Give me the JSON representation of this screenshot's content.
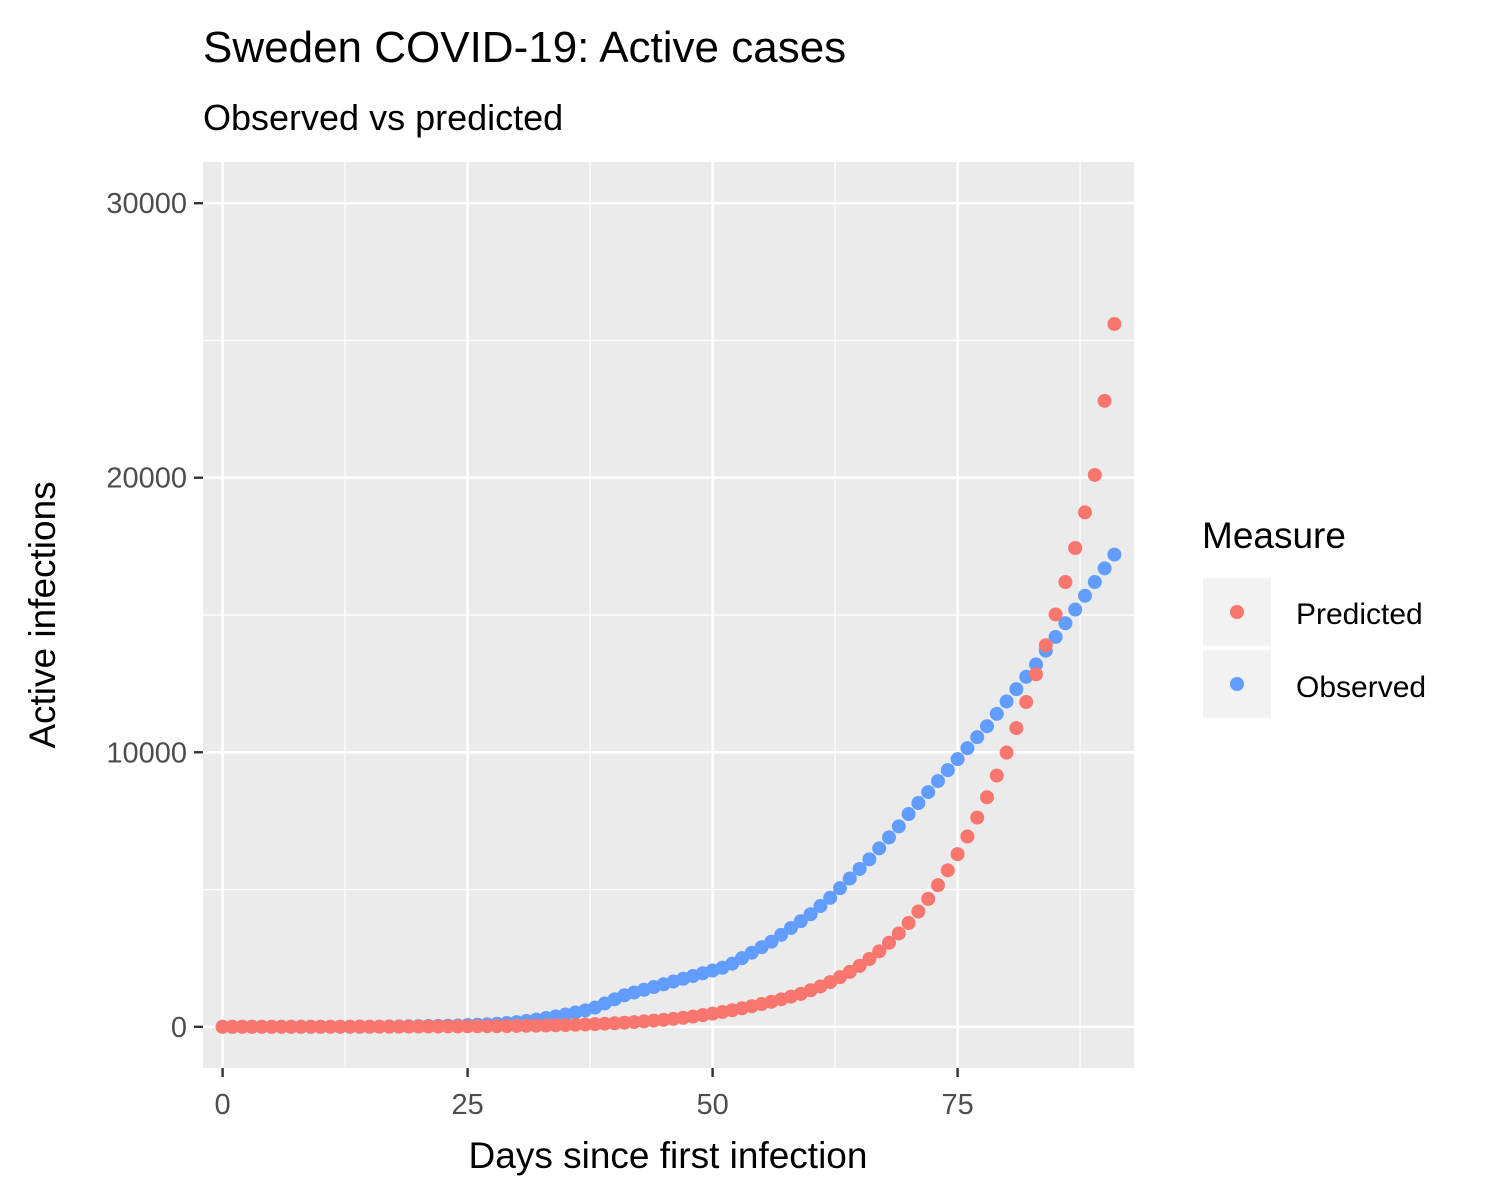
{
  "chart_data": {
    "type": "scatter",
    "title": "Sweden COVID-19: Active cases",
    "subtitle": "Observed vs predicted",
    "xlabel": "Days since first infection",
    "ylabel": "Active infections",
    "xlim": [
      -2,
      93
    ],
    "ylim": [
      -1500,
      31500
    ],
    "x_ticks": [
      0,
      25,
      50,
      75
    ],
    "x_tick_labels": [
      "0",
      "25",
      "50",
      "75"
    ],
    "y_ticks": [
      0,
      10000,
      20000,
      30000
    ],
    "y_tick_labels": [
      "0",
      "10000",
      "20000",
      "30000"
    ],
    "grid": true,
    "legend": {
      "title": "Measure",
      "placement": "right"
    },
    "x": [
      0,
      1,
      2,
      3,
      4,
      5,
      6,
      7,
      8,
      9,
      10,
      11,
      12,
      13,
      14,
      15,
      16,
      17,
      18,
      19,
      20,
      21,
      22,
      23,
      24,
      25,
      26,
      27,
      28,
      29,
      30,
      31,
      32,
      33,
      34,
      35,
      36,
      37,
      38,
      39,
      40,
      41,
      42,
      43,
      44,
      45,
      46,
      47,
      48,
      49,
      50,
      51,
      52,
      53,
      54,
      55,
      56,
      57,
      58,
      59,
      60,
      61,
      62,
      63,
      64,
      65,
      66,
      67,
      68,
      69,
      70,
      71,
      72,
      73,
      74,
      75,
      76,
      77,
      78,
      79,
      80,
      81,
      82,
      83,
      84,
      85,
      86,
      87,
      88,
      89,
      90,
      91
    ],
    "series": [
      {
        "name": "Predicted",
        "color": "#F8766D",
        "values": [
          1,
          1,
          1,
          1,
          1,
          2,
          2,
          2,
          2,
          3,
          3,
          3,
          4,
          4,
          5,
          5,
          6,
          7,
          7,
          8,
          9,
          10,
          12,
          13,
          15,
          17,
          19,
          22,
          25,
          28,
          32,
          37,
          42,
          48,
          55,
          63,
          73,
          85,
          98,
          113,
          130,
          150,
          173,
          198,
          225,
          255,
          290,
          330,
          375,
          425,
          480,
          540,
          605,
          675,
          750,
          830,
          910,
          1000,
          1100,
          1200,
          1330,
          1470,
          1630,
          1810,
          2000,
          2220,
          2470,
          2750,
          3060,
          3400,
          3780,
          4200,
          4660,
          5160,
          5700,
          6290,
          6930,
          7620,
          8360,
          9150,
          9990,
          10880,
          11830,
          12840,
          13900,
          15020,
          16200,
          17440,
          18740,
          20100,
          22800,
          25600
        ]
      },
      {
        "name": "Observed",
        "color": "#619CFF",
        "values": [
          1,
          1,
          1,
          1,
          1,
          1,
          1,
          1,
          1,
          1,
          1,
          1,
          1,
          1,
          2,
          3,
          5,
          10,
          14,
          20,
          25,
          30,
          35,
          40,
          50,
          60,
          75,
          90,
          110,
          140,
          170,
          210,
          260,
          320,
          380,
          450,
          520,
          600,
          700,
          850,
          1000,
          1150,
          1250,
          1350,
          1450,
          1550,
          1650,
          1750,
          1850,
          1950,
          2050,
          2150,
          2300,
          2500,
          2700,
          2900,
          3100,
          3350,
          3600,
          3850,
          4100,
          4400,
          4700,
          5050,
          5400,
          5750,
          6100,
          6500,
          6900,
          7300,
          7750,
          8150,
          8550,
          8950,
          9350,
          9750,
          10150,
          10550,
          10950,
          11400,
          11850,
          12300,
          12750,
          13200,
          13700,
          14200,
          14700,
          15200,
          15700,
          16200,
          16700,
          17200
        ]
      }
    ]
  }
}
